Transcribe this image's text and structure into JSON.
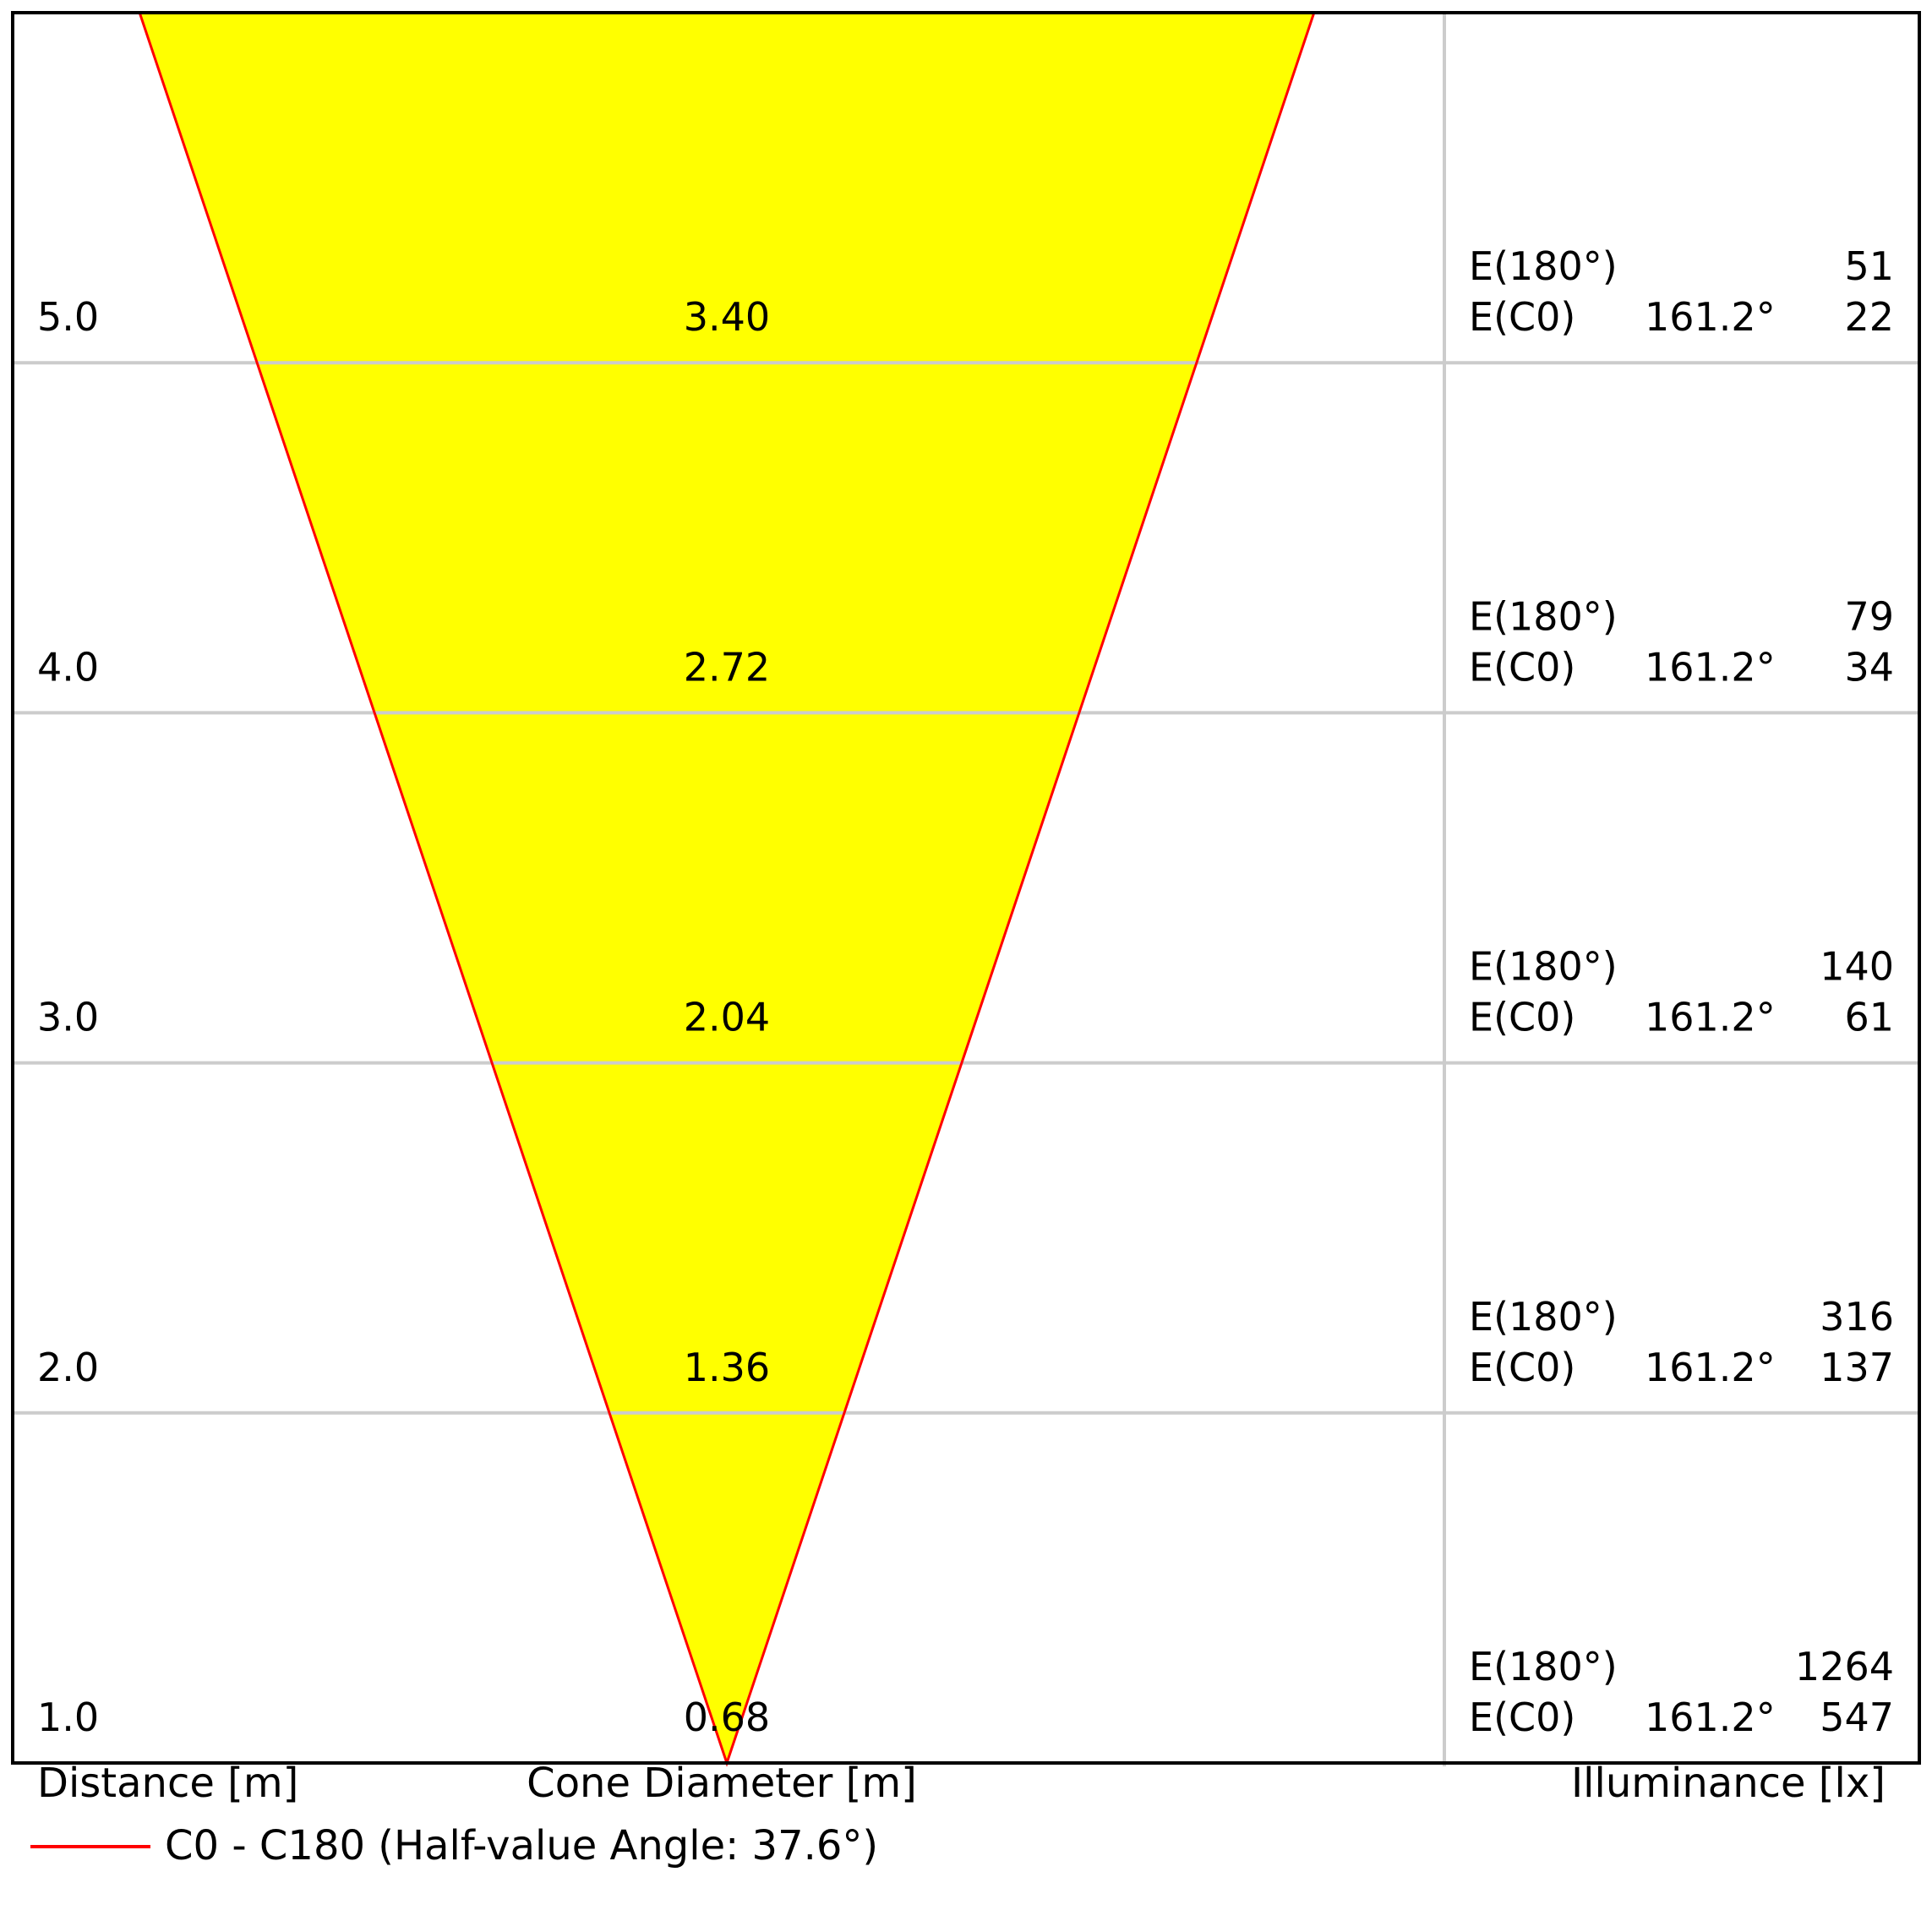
{
  "chart_data": {
    "type": "cone",
    "x_label": "Distance [m]",
    "center_label": "Cone Diameter [m]",
    "right_label": "Illuminance [lx]",
    "legend": {
      "name": "C0 - C180 (Half-value Angle: 37.6°)",
      "color": "#ff0000"
    },
    "fill": "#ffff00",
    "e180_label": "E(180°)",
    "ec0_label": "E(C0)",
    "ec0_angle": "161.2°",
    "distances": [
      {
        "value": 1,
        "label": "1.0"
      },
      {
        "value": 2,
        "label": "2.0"
      },
      {
        "value": 3,
        "label": "3.0"
      },
      {
        "value": 4,
        "label": "4.0"
      },
      {
        "value": 5,
        "label": "5.0"
      }
    ],
    "diameters": {
      "values": [
        0.68,
        1.36,
        2.04,
        2.72,
        3.4
      ],
      "value_labels": [
        "0.68",
        "1.36",
        "2.04",
        "2.72",
        "3.40"
      ]
    },
    "e180": [
      1264,
      316,
      140,
      79,
      51
    ],
    "ec0": [
      547,
      137,
      61,
      34,
      22
    ]
  }
}
